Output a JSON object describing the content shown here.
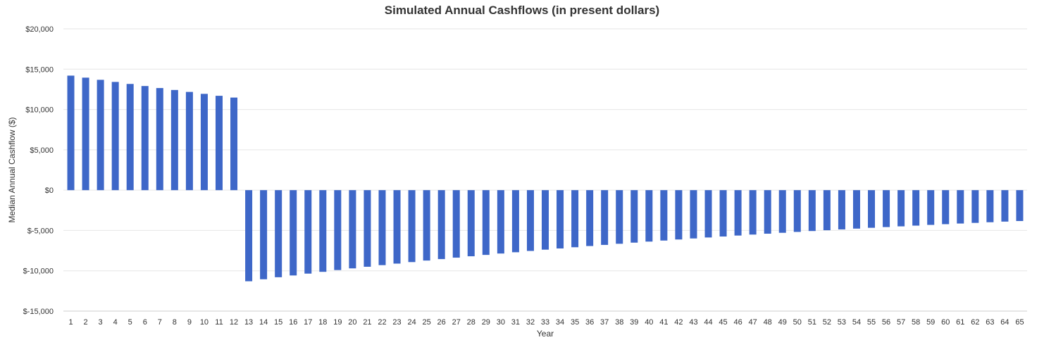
{
  "chart_data": {
    "type": "bar",
    "title": "Simulated Annual Cashflows (in present dollars)",
    "xlabel": "Year",
    "ylabel": "Median Annual Cashflow ($)",
    "ylim": [
      -15000,
      20000
    ],
    "yticks": [
      20000,
      15000,
      10000,
      5000,
      0,
      -5000,
      -10000,
      -15000
    ],
    "ytick_labels": [
      "$20,000",
      "$15,000",
      "$10,000",
      "$5,000",
      "$0",
      "$-5,000",
      "$-10,000",
      "$-15,000"
    ],
    "grid": true,
    "legend": "none",
    "bar_color": "#3e67c8",
    "categories": [
      "1",
      "2",
      "3",
      "4",
      "5",
      "6",
      "7",
      "8",
      "9",
      "10",
      "11",
      "12",
      "13",
      "14",
      "15",
      "16",
      "17",
      "18",
      "19",
      "20",
      "21",
      "22",
      "23",
      "24",
      "25",
      "26",
      "27",
      "28",
      "29",
      "30",
      "31",
      "32",
      "33",
      "34",
      "35",
      "36",
      "37",
      "38",
      "39",
      "40",
      "41",
      "42",
      "43",
      "44",
      "45",
      "46",
      "47",
      "48",
      "49",
      "50",
      "51",
      "52",
      "53",
      "54",
      "55",
      "56",
      "57",
      "58",
      "59",
      "60",
      "61",
      "62",
      "63",
      "64",
      "65"
    ],
    "values": [
      14200,
      13950,
      13680,
      13420,
      13170,
      12910,
      12660,
      12420,
      12180,
      11940,
      11700,
      11480,
      -11300,
      -11050,
      -10800,
      -10580,
      -10350,
      -10130,
      -9910,
      -9700,
      -9500,
      -9300,
      -9110,
      -8920,
      -8730,
      -8550,
      -8370,
      -8200,
      -8030,
      -7860,
      -7700,
      -7540,
      -7380,
      -7230,
      -7080,
      -6930,
      -6790,
      -6650,
      -6510,
      -6380,
      -6250,
      -6120,
      -5990,
      -5870,
      -5750,
      -5630,
      -5510,
      -5400,
      -5290,
      -5180,
      -5070,
      -4970,
      -4870,
      -4770,
      -4670,
      -4580,
      -4490,
      -4400,
      -4310,
      -4220,
      -4140,
      -4060,
      -3980,
      -3900,
      -3830
    ]
  }
}
